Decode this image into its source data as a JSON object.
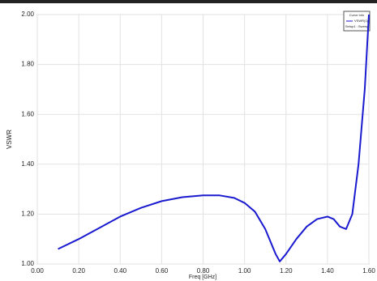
{
  "chart_data": {
    "type": "line",
    "x_label": "Freq [GHz]",
    "y_label": "VSWR",
    "legend_title": "Curve Info",
    "legend_subtitle": "Setup1 : Sweep",
    "x": [
      0.1,
      0.2,
      0.3,
      0.4,
      0.5,
      0.6,
      0.7,
      0.8,
      0.88,
      0.95,
      1.0,
      1.05,
      1.1,
      1.15,
      1.17,
      1.2,
      1.25,
      1.3,
      1.35,
      1.4,
      1.43,
      1.46,
      1.49,
      1.52,
      1.55,
      1.58,
      1.6
    ],
    "series": [
      {
        "name": "VSWR(1)",
        "color": "#1a1ad0",
        "values": [
          1.06,
          1.1,
          1.145,
          1.19,
          1.225,
          1.252,
          1.268,
          1.275,
          1.275,
          1.265,
          1.245,
          1.21,
          1.14,
          1.04,
          1.01,
          1.04,
          1.1,
          1.15,
          1.18,
          1.19,
          1.18,
          1.15,
          1.14,
          1.2,
          1.4,
          1.7,
          2.0
        ]
      }
    ],
    "xlim": [
      0,
      1.6
    ],
    "ylim": [
      1,
      2
    ],
    "xticks": [
      {
        "value": 0,
        "label": "0.00"
      },
      {
        "value": 0.2,
        "label": "0.20"
      },
      {
        "value": 0.4,
        "label": "0.40"
      },
      {
        "value": 0.6,
        "label": "0.60"
      },
      {
        "value": 0.8,
        "label": "0.80"
      },
      {
        "value": 1,
        "label": "1.00"
      },
      {
        "value": 1.2,
        "label": "1.20"
      },
      {
        "value": 1.4,
        "label": "1.40"
      },
      {
        "value": 1.6,
        "label": "1.60"
      }
    ],
    "yticks": [
      {
        "value": 1,
        "label": "1.00"
      },
      {
        "value": 1.2,
        "label": "1.20"
      },
      {
        "value": 1.4,
        "label": "1.40"
      },
      {
        "value": 1.6,
        "label": "1.60"
      },
      {
        "value": 1.8,
        "label": "1.80"
      },
      {
        "value": 2,
        "label": "2.00"
      }
    ],
    "grid": true
  }
}
